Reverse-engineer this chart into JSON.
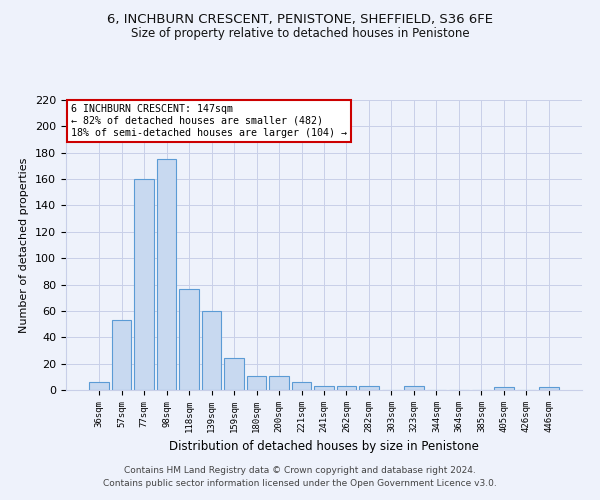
{
  "title": "6, INCHBURN CRESCENT, PENISTONE, SHEFFIELD, S36 6FE",
  "subtitle": "Size of property relative to detached houses in Penistone",
  "xlabel": "Distribution of detached houses by size in Penistone",
  "ylabel": "Number of detached properties",
  "categories": [
    "36sqm",
    "57sqm",
    "77sqm",
    "98sqm",
    "118sqm",
    "139sqm",
    "159sqm",
    "180sqm",
    "200sqm",
    "221sqm",
    "241sqm",
    "262sqm",
    "282sqm",
    "303sqm",
    "323sqm",
    "344sqm",
    "364sqm",
    "385sqm",
    "405sqm",
    "426sqm",
    "446sqm"
  ],
  "values": [
    6,
    53,
    160,
    175,
    77,
    60,
    24,
    11,
    11,
    6,
    3,
    3,
    3,
    0,
    3,
    0,
    0,
    0,
    2,
    0,
    2
  ],
  "bar_color": "#c8d9f0",
  "bar_edge_color": "#5b9bd5",
  "annotation_line1": "6 INCHBURN CRESCENT: 147sqm",
  "annotation_line2": "← 82% of detached houses are smaller (482)",
  "annotation_line3": "18% of semi-detached houses are larger (104) →",
  "annotation_box_color": "#ffffff",
  "annotation_border_color": "#cc0000",
  "footer_line1": "Contains HM Land Registry data © Crown copyright and database right 2024.",
  "footer_line2": "Contains public sector information licensed under the Open Government Licence v3.0.",
  "bg_color": "#eef2fb",
  "grid_color": "#c8cfe8",
  "ylim": [
    0,
    220
  ],
  "yticks": [
    0,
    20,
    40,
    60,
    80,
    100,
    120,
    140,
    160,
    180,
    200,
    220
  ]
}
